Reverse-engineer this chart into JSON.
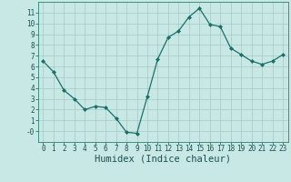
{
  "x": [
    0,
    1,
    2,
    3,
    4,
    5,
    6,
    7,
    8,
    9,
    10,
    11,
    12,
    13,
    14,
    15,
    16,
    17,
    18,
    19,
    20,
    21,
    22,
    23
  ],
  "y": [
    6.5,
    5.5,
    3.8,
    3.0,
    2.0,
    2.3,
    2.2,
    1.2,
    -0.1,
    -0.2,
    3.2,
    6.7,
    8.7,
    9.3,
    10.6,
    11.4,
    9.9,
    9.7,
    7.7,
    7.1,
    6.5,
    6.2,
    6.5,
    7.1
  ],
  "line_color": "#1a7068",
  "marker": "D",
  "marker_size": 2.0,
  "bg_color": "#c8e8e5",
  "grid_major_color": "#a8c8c5",
  "grid_minor_color": "#b8d8d5",
  "xlabel": "Humidex (Indice chaleur)",
  "xlim": [
    -0.5,
    23.5
  ],
  "ylim": [
    -1.0,
    12.0
  ],
  "yticks": [
    0,
    1,
    2,
    3,
    4,
    5,
    6,
    7,
    8,
    9,
    10,
    11
  ],
  "xticks": [
    0,
    1,
    2,
    3,
    4,
    5,
    6,
    7,
    8,
    9,
    10,
    11,
    12,
    13,
    14,
    15,
    16,
    17,
    18,
    19,
    20,
    21,
    22,
    23
  ],
  "tick_fontsize": 5.5,
  "xlabel_fontsize": 7.5,
  "spine_color": "#2a8070",
  "linewidth": 0.9
}
